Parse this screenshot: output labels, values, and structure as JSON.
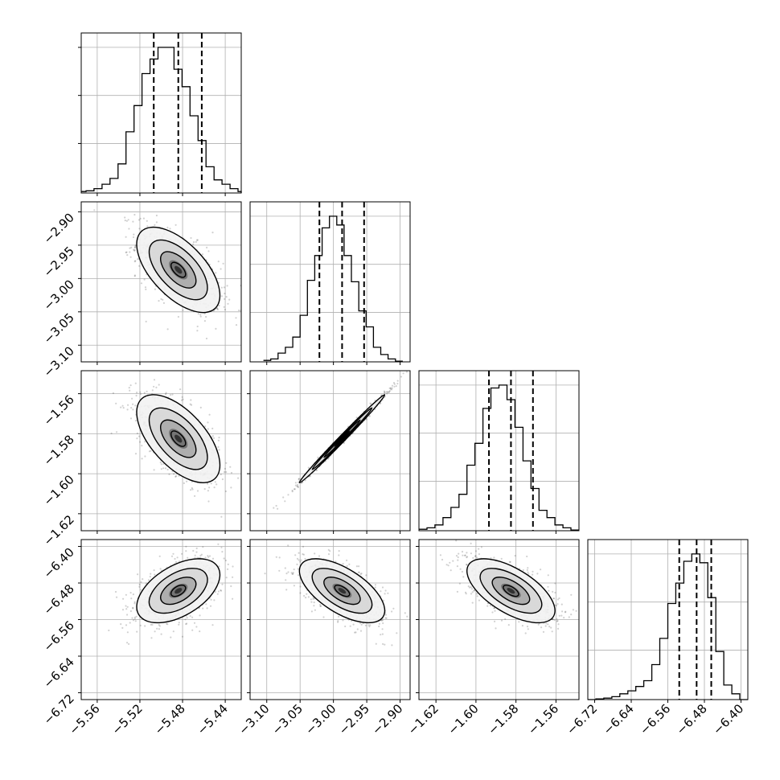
{
  "colors": {
    "line": "#000000",
    "grid": "#b0b0b0",
    "frame": "#000000",
    "background": "#ffffff"
  },
  "chart_data": {
    "type": "corner",
    "grid": true,
    "parameters": [
      {
        "range": [
          -5.575,
          -5.425
        ],
        "ticks": [
          -5.56,
          -5.52,
          -5.48,
          -5.44
        ],
        "tick_labels": [
          "−5.56",
          "−5.52",
          "−5.48",
          "−5.44"
        ],
        "quantiles": [
          -5.507,
          -5.484,
          -5.462
        ],
        "mean": -5.484,
        "sd": 0.0195,
        "hist_left": -5.578,
        "hist_bin": 0.0075,
        "hist": [
          0.01,
          0.015,
          0.03,
          0.06,
          0.1,
          0.2,
          0.42,
          0.6,
          0.82,
          0.92,
          1.0,
          1.0,
          0.85,
          0.73,
          0.53,
          0.36,
          0.18,
          0.09,
          0.06,
          0.03,
          0.01,
          0.0
        ]
      },
      {
        "range": [
          -3.125,
          -2.885
        ],
        "ticks": [
          -3.1,
          -3.05,
          -3.0,
          -2.95,
          -2.9
        ],
        "tick_labels": [
          "−3.10",
          "−3.05",
          "−3.00",
          "−2.95",
          "−2.90"
        ],
        "quantiles": [
          -3.021,
          -2.987,
          -2.954
        ],
        "mean": -2.987,
        "sd": 0.032,
        "hist_left": -3.105,
        "hist_bin": 0.011,
        "hist": [
          0.01,
          0.02,
          0.06,
          0.1,
          0.17,
          0.32,
          0.56,
          0.73,
          0.92,
          1.0,
          0.94,
          0.73,
          0.55,
          0.35,
          0.24,
          0.1,
          0.05,
          0.02,
          0.005
        ]
      },
      {
        "range": [
          -1.6285,
          -1.5485
        ],
        "ticks": [
          -1.62,
          -1.6,
          -1.58,
          -1.56
        ],
        "tick_labels": [
          "−1.62",
          "−1.60",
          "−1.58",
          "−1.56"
        ],
        "quantiles": [
          -1.5935,
          -1.5825,
          -1.5715
        ],
        "mean": -1.5825,
        "sd": 0.011,
        "hist_left": -1.6285,
        "hist_bin": 0.004,
        "hist": [
          0.01,
          0.02,
          0.04,
          0.09,
          0.16,
          0.25,
          0.45,
          0.6,
          0.84,
          0.98,
          1.0,
          0.9,
          0.71,
          0.48,
          0.29,
          0.14,
          0.09,
          0.04,
          0.02,
          0.005
        ]
      },
      {
        "range": [
          -6.735,
          -6.385
        ],
        "ticks": [
          -6.72,
          -6.64,
          -6.56,
          -6.48,
          -6.4
        ],
        "tick_labels": [
          "−6.72",
          "−6.64",
          "−6.56",
          "−6.48",
          "−6.40"
        ],
        "quantiles": [
          -6.535,
          -6.497,
          -6.465
        ],
        "mean": -6.497,
        "sd": 0.035,
        "hist_left": -6.735,
        "hist_bin": 0.0175,
        "hist": [
          0.0,
          0.005,
          0.01,
          0.02,
          0.04,
          0.06,
          0.09,
          0.13,
          0.24,
          0.42,
          0.66,
          0.8,
          0.95,
          1.0,
          0.94,
          0.7,
          0.33,
          0.1,
          0.04,
          0.0
        ]
      }
    ],
    "pairs": [
      {
        "row": 1,
        "col": 0,
        "correlation": -0.6
      },
      {
        "row": 2,
        "col": 0,
        "correlation": -0.6
      },
      {
        "row": 2,
        "col": 1,
        "correlation": 0.995
      },
      {
        "row": 3,
        "col": 0,
        "correlation": 0.5
      },
      {
        "row": 3,
        "col": 1,
        "correlation": -0.62
      },
      {
        "row": 3,
        "col": 2,
        "correlation": -0.62
      }
    ]
  }
}
